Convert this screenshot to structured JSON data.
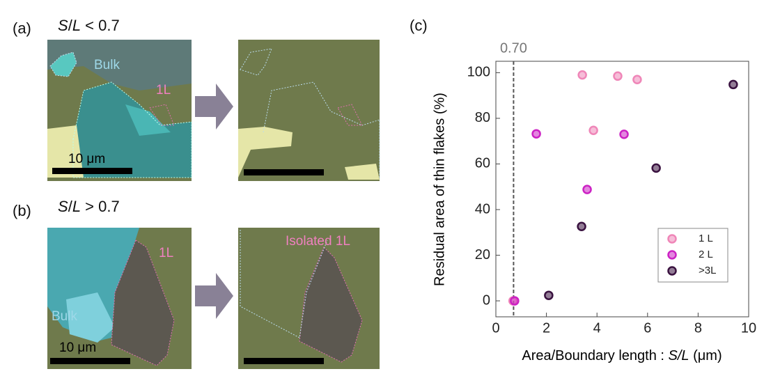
{
  "panels": [
    {
      "label": "(a)",
      "title": {
        "s": "S",
        "slash": "/",
        "l": "L",
        "rest": " < 0.7"
      },
      "left_image": {
        "bulk": "Bulk",
        "layer": "1L",
        "scale": "10 μm"
      }
    },
    {
      "label": "(b)",
      "title": {
        "s": "S",
        "slash": "/",
        "l": "L",
        "rest": " > 0.7"
      },
      "left_image": {
        "bulk": "Bulk",
        "layer": "1L",
        "scale": "10 μm"
      },
      "right_image": {
        "layer": "Isolated 1L"
      }
    }
  ],
  "chart_data": {
    "type": "scatter",
    "panel_label": "(c)",
    "x_label": "Area/Boundary length : ",
    "x_label_var": "S/L",
    "x_label_unit": " (μm)",
    "y_label": "Residual area of thin flakes (%)",
    "xlim": [
      0,
      10
    ],
    "xticks": [
      0,
      2,
      4,
      6,
      8,
      10
    ],
    "ylim": [
      -7,
      105
    ],
    "yticks": [
      0,
      20,
      40,
      60,
      80,
      100
    ],
    "threshold": {
      "value": 0.7,
      "label": "0.70"
    },
    "legend": "lower right",
    "series": [
      {
        "name": "1 L",
        "color": "#ef86b8",
        "x": [
          0.68,
          3.42,
          4.82,
          5.59,
          3.86
        ],
        "values": [
          0,
          99,
          98.5,
          97,
          74.7
        ]
      },
      {
        "name": "2 L",
        "color": "#cc22c4",
        "x": [
          0.74,
          1.6,
          5.07,
          3.61
        ],
        "values": [
          0,
          73.2,
          73,
          48.8
        ]
      },
      {
        "name": ">3L",
        "color": "#3a1240",
        "x": [
          2.09,
          3.39,
          6.34,
          9.39
        ],
        "values": [
          2.4,
          32.6,
          58.2,
          94.8
        ]
      }
    ]
  }
}
